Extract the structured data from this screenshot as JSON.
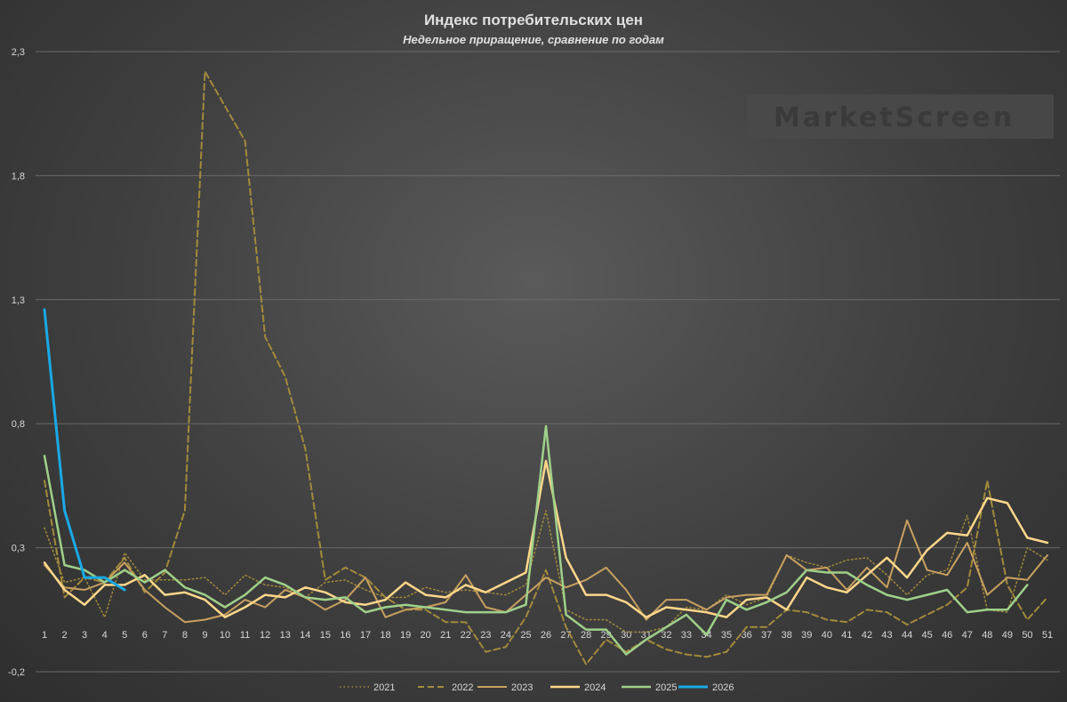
{
  "chart_data": {
    "type": "line",
    "title": "Индекс потребительских цен",
    "subtitle": "Недельное приращение, сравнение по годам",
    "xlabel": "",
    "ylabel": "",
    "ylim": [
      -0.2,
      2.3
    ],
    "y_ticks": [
      "2,3",
      "1,8",
      "1,3",
      "0,8",
      "0,3",
      "-0,2"
    ],
    "x": [
      1,
      2,
      3,
      4,
      5,
      6,
      7,
      8,
      9,
      10,
      11,
      12,
      13,
      14,
      15,
      16,
      17,
      18,
      19,
      20,
      21,
      22,
      23,
      24,
      25,
      26,
      27,
      28,
      29,
      30,
      31,
      32,
      33,
      34,
      35,
      36,
      37,
      38,
      39,
      40,
      41,
      42,
      43,
      44,
      45,
      46,
      47,
      48,
      49,
      50,
      51
    ],
    "grid": "horizontal",
    "legend_position": "bottom",
    "watermark": "MarketScreen",
    "series": [
      {
        "name": "2021",
        "color": "#a38a3c",
        "style": "dotted",
        "width": 1.5,
        "values": [
          0.38,
          0.16,
          0.18,
          0.02,
          0.28,
          0.17,
          0.17,
          0.17,
          0.18,
          0.11,
          0.19,
          0.15,
          0.14,
          0.1,
          0.16,
          0.17,
          0.13,
          0.1,
          0.1,
          0.14,
          0.12,
          0.13,
          0.12,
          0.11,
          0.15,
          0.45,
          0.05,
          0.01,
          0.01,
          -0.04,
          -0.04,
          -0.02,
          0.06,
          0.05,
          0.11,
          0.07,
          0.1,
          0.27,
          0.24,
          0.22,
          0.25,
          0.26,
          0.19,
          0.11,
          0.19,
          0.21,
          0.43,
          0.05,
          0.04,
          0.3,
          0.25
        ]
      },
      {
        "name": "2022",
        "color": "#a38a3c",
        "style": "dashed",
        "width": 2,
        "values": [
          0.57,
          0.1,
          0.18,
          0.16,
          0.26,
          0.12,
          0.2,
          0.45,
          2.22,
          2.08,
          1.94,
          1.15,
          0.99,
          0.7,
          0.17,
          0.22,
          0.18,
          0.1,
          0.05,
          0.05,
          0.0,
          0.0,
          -0.12,
          -0.1,
          0.02,
          0.21,
          -0.02,
          -0.17,
          -0.07,
          -0.12,
          -0.07,
          -0.11,
          -0.13,
          -0.14,
          -0.12,
          -0.02,
          -0.02,
          0.05,
          0.04,
          0.01,
          0.0,
          0.05,
          0.04,
          -0.01,
          0.03,
          0.07,
          0.14,
          0.57,
          0.15,
          0.01,
          0.1
        ]
      },
      {
        "name": "2023",
        "color": "#c8a060",
        "style": "solid",
        "width": 2,
        "values": [
          0.23,
          0.14,
          0.13,
          0.16,
          0.24,
          0.13,
          0.06,
          0.0,
          0.01,
          0.03,
          0.09,
          0.06,
          0.13,
          0.1,
          0.05,
          0.09,
          0.18,
          0.02,
          0.05,
          0.06,
          0.08,
          0.19,
          0.06,
          0.04,
          0.11,
          0.18,
          0.14,
          0.17,
          0.22,
          0.13,
          0.01,
          0.09,
          0.09,
          0.05,
          0.1,
          0.11,
          0.11,
          0.27,
          0.21,
          0.22,
          0.13,
          0.22,
          0.14,
          0.41,
          0.21,
          0.19,
          0.32,
          0.11,
          0.18,
          0.17,
          0.27
        ]
      },
      {
        "name": "2024",
        "color": "#ffd78a",
        "style": "solid",
        "width": 2.5,
        "values": [
          0.24,
          0.13,
          0.07,
          0.15,
          0.15,
          0.19,
          0.11,
          0.12,
          0.09,
          0.02,
          0.06,
          0.11,
          0.1,
          0.14,
          0.12,
          0.08,
          0.07,
          0.09,
          0.16,
          0.11,
          0.1,
          0.15,
          0.12,
          0.16,
          0.2,
          0.65,
          0.26,
          0.11,
          0.11,
          0.08,
          0.02,
          0.06,
          0.05,
          0.04,
          0.02,
          0.09,
          0.1,
          0.05,
          0.18,
          0.14,
          0.12,
          0.19,
          0.26,
          0.18,
          0.29,
          0.36,
          0.35,
          0.5,
          0.48,
          0.34,
          0.32
        ]
      },
      {
        "name": "2025",
        "color": "#9fd08a",
        "style": "solid",
        "width": 2.5,
        "values": [
          0.67,
          0.23,
          0.21,
          0.16,
          0.21,
          0.16,
          0.21,
          0.14,
          0.11,
          0.06,
          0.11,
          0.18,
          0.15,
          0.1,
          0.09,
          0.1,
          0.04,
          0.06,
          0.07,
          0.06,
          0.05,
          0.04,
          0.04,
          0.04,
          0.07,
          0.79,
          0.03,
          -0.03,
          -0.03,
          -0.13,
          -0.07,
          -0.02,
          0.03,
          -0.05,
          0.09,
          0.05,
          0.08,
          0.12,
          0.21,
          0.2,
          0.2,
          0.15,
          0.11,
          0.09,
          0.11,
          0.13,
          0.04,
          0.05,
          0.05,
          0.15,
          null
        ]
      },
      {
        "name": "2026",
        "color": "#1aa9e6",
        "style": "solid",
        "width": 3,
        "values": [
          1.26,
          0.45,
          0.18,
          0.18,
          0.13,
          null,
          null,
          null,
          null,
          null,
          null,
          null,
          null,
          null,
          null,
          null,
          null,
          null,
          null,
          null,
          null,
          null,
          null,
          null,
          null,
          null,
          null,
          null,
          null,
          null,
          null,
          null,
          null,
          null,
          null,
          null,
          null,
          null,
          null,
          null,
          null,
          null,
          null,
          null,
          null,
          null,
          null,
          null,
          null,
          null,
          null
        ]
      }
    ]
  }
}
